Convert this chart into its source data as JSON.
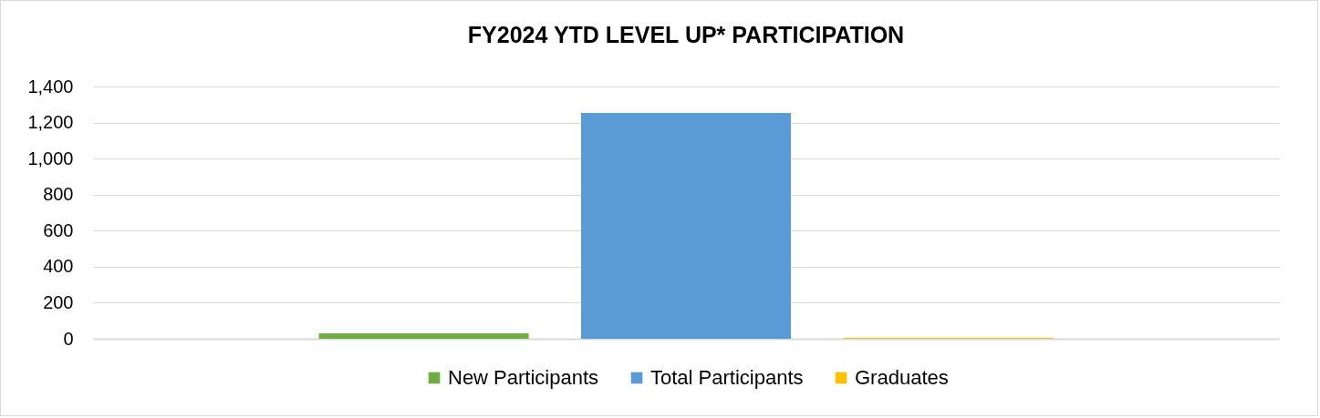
{
  "chart_data": {
    "type": "bar",
    "title": "FY2024 YTD LEVEL UP* PARTICIPATION",
    "categories": [
      null
    ],
    "series": [
      {
        "name": "New Participants",
        "color": "#70ad47",
        "values": [
          30
        ]
      },
      {
        "name": "Total Participants",
        "color": "#5b9bd5",
        "values": [
          1254
        ]
      },
      {
        "name": "Graduates",
        "color": "#ffc000",
        "values": [
          5
        ]
      }
    ],
    "ylim": [
      0,
      1400
    ],
    "yticks": [
      0,
      200,
      400,
      600,
      800,
      {
        "value": 1000,
        "label": "1,000"
      },
      {
        "value": 1200,
        "label": "1,200"
      },
      {
        "value": 1400,
        "label": "1,400"
      }
    ],
    "grid": "y",
    "legend": "bottom"
  }
}
